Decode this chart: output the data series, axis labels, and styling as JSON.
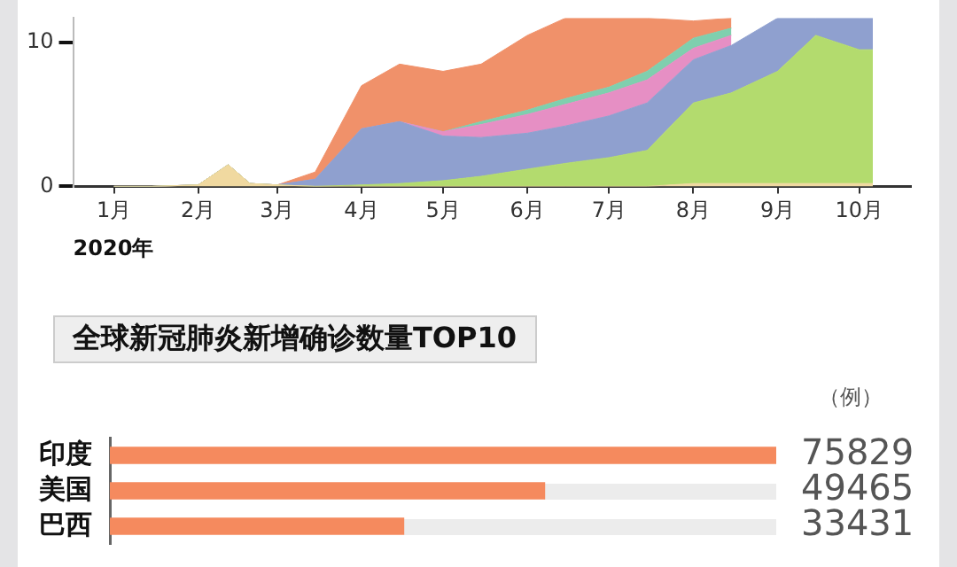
{
  "chart_data": [
    {
      "type": "area",
      "stacked": true,
      "xlabel": "2020年",
      "x": [
        "2020-01-01",
        "2020-01-15",
        "2020-02-01",
        "2020-02-12",
        "2020-02-20",
        "2020-03-01",
        "2020-03-15",
        "2020-04-01",
        "2020-04-15",
        "2020-05-01",
        "2020-05-15",
        "2020-06-01",
        "2020-06-15",
        "2020-07-01",
        "2020-07-15",
        "2020-08-01",
        "2020-08-15",
        "2020-09-01",
        "2020-09-15",
        "2020-10-01",
        "2020-10-06"
      ],
      "series": [
        {
          "color": "#f0d9a0",
          "values": [
            0,
            0,
            0.1,
            1.5,
            0.2,
            0.1,
            0,
            0,
            0,
            0,
            0,
            0,
            0,
            0,
            0,
            0.2,
            0.2,
            0.2,
            0.2,
            0.2,
            0.2
          ]
        },
        {
          "color": "#b3db6e",
          "values": [
            0,
            0,
            0,
            0,
            0,
            0,
            0,
            0.1,
            0.2,
            0.4,
            0.7,
            1.2,
            1.6,
            2.0,
            2.5,
            5.6,
            6.3,
            7.8,
            10.3,
            9.3,
            9.3
          ]
        },
        {
          "color": "#8fa0cf",
          "values": [
            0,
            0,
            0,
            0,
            0,
            0,
            0.5,
            3.9,
            4.3,
            3.1,
            2.7,
            2.5,
            2.6,
            2.9,
            3.3,
            3.0,
            3.3,
            3.7,
            1.2,
            2.2,
            2.2
          ]
        },
        {
          "color": "#e68fc4",
          "values": [
            0,
            0,
            0,
            0,
            0,
            0,
            0,
            0,
            0,
            0.3,
            0.9,
            1.3,
            1.5,
            1.6,
            1.6,
            0.8,
            0.7,
            null,
            null,
            null,
            null
          ]
        },
        {
          "color": "#7fcfae",
          "values": [
            0,
            0,
            0,
            0,
            0,
            0,
            0,
            0,
            0,
            0,
            0.2,
            0.3,
            0.4,
            0.4,
            0.6,
            0.7,
            0.5,
            null,
            null,
            null,
            null
          ]
        },
        {
          "color": "#f0916a",
          "values": [
            0,
            0,
            0,
            0,
            0,
            0,
            0.5,
            3.0,
            4.0,
            4.2,
            4.0,
            5.2,
            5.6,
            4.8,
            3.7,
            1.2,
            0.7,
            null,
            null,
            null,
            null
          ]
        }
      ],
      "xlim": [
        "2019-12-17",
        "2020-10-20"
      ],
      "xticks": [
        {
          "value": "2020-01-01",
          "label": "1月"
        },
        {
          "value": "2020-02-01",
          "label": "2月"
        },
        {
          "value": "2020-03-01",
          "label": "3月"
        },
        {
          "value": "2020-04-01",
          "label": "4月"
        },
        {
          "value": "2020-05-01",
          "label": "5月"
        },
        {
          "value": "2020-06-01",
          "label": "6月"
        },
        {
          "value": "2020-07-01",
          "label": "7月"
        },
        {
          "value": "2020-08-01",
          "label": "8月"
        },
        {
          "value": "2020-09-01",
          "label": "9月"
        },
        {
          "value": "2020-10-01",
          "label": "10月"
        }
      ],
      "ylim": [
        0,
        11.7
      ],
      "yticks": [
        0,
        10
      ],
      "grid": false,
      "legend": false
    },
    {
      "type": "bar",
      "orientation": "horizontal",
      "title": "全球新冠肺炎新增确诊数量TOP10",
      "categories": [
        "印度",
        "美国",
        "巴西"
      ],
      "values": [
        75829,
        49465,
        33431
      ],
      "color": "#f58a5e",
      "data_labels": true,
      "annotations": [
        "（例）"
      ],
      "grid": false,
      "legend": false
    }
  ]
}
